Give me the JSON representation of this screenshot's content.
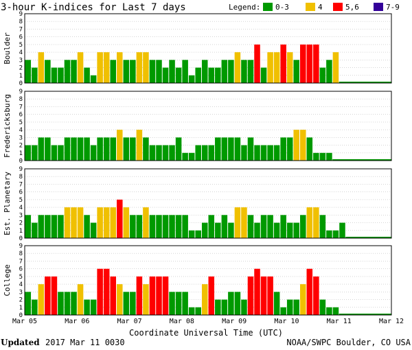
{
  "title": "3-hour K-indices for Last 7 days",
  "legend": {
    "label": "Legend:",
    "items": [
      {
        "label": "0-3",
        "color": "#009900"
      },
      {
        "label": "4",
        "color": "#f0c000"
      },
      {
        "label": "5,6",
        "color": "#ff0000"
      },
      {
        "label": "7-9",
        "color": "#330099"
      }
    ]
  },
  "chart_data": [
    {
      "type": "bar",
      "station": "Boulder",
      "ylim": [
        0,
        9
      ],
      "yticks": [
        "0",
        "1",
        "2",
        "3",
        "4",
        "5",
        "6",
        "7",
        "8",
        "9"
      ],
      "values": [
        3,
        2,
        4,
        3,
        2,
        2,
        3,
        3,
        4,
        2,
        1,
        4,
        4,
        3,
        4,
        3,
        3,
        4,
        4,
        3,
        3,
        2,
        3,
        2,
        3,
        1,
        2,
        3,
        2,
        2,
        3,
        3,
        4,
        3,
        3,
        5,
        2,
        4,
        4,
        5,
        4,
        3,
        5,
        5,
        5,
        2,
        3,
        4
      ]
    },
    {
      "type": "bar",
      "station": "Fredericksburg",
      "ylim": [
        0,
        9
      ],
      "yticks": [
        "0",
        "1",
        "2",
        "3",
        "4",
        "5",
        "6",
        "7",
        "8",
        "9"
      ],
      "values": [
        2,
        2,
        3,
        3,
        2,
        2,
        3,
        3,
        3,
        3,
        2,
        3,
        3,
        3,
        4,
        3,
        3,
        4,
        3,
        2,
        2,
        2,
        2,
        3,
        1,
        1,
        2,
        2,
        2,
        3,
        3,
        3,
        3,
        2,
        3,
        2,
        2,
        2,
        2,
        3,
        3,
        4,
        4,
        3,
        1,
        1,
        1
      ]
    },
    {
      "type": "bar",
      "station": "Est. Planetary",
      "ylim": [
        0,
        9
      ],
      "yticks": [
        "0",
        "1",
        "2",
        "3",
        "4",
        "5",
        "6",
        "7",
        "8",
        "9"
      ],
      "values": [
        3,
        2,
        3,
        3,
        3,
        3,
        4,
        4,
        4,
        3,
        2,
        4,
        4,
        4,
        5,
        4,
        3,
        3,
        4,
        3,
        3,
        3,
        3,
        3,
        3,
        1,
        1,
        2,
        3,
        2,
        3,
        2,
        4,
        4,
        3,
        2,
        3,
        3,
        2,
        3,
        2,
        2,
        3,
        4,
        4,
        3,
        1,
        1,
        2
      ]
    },
    {
      "type": "bar",
      "station": "College",
      "ylim": [
        0,
        9
      ],
      "yticks": [
        "0",
        "1",
        "2",
        "3",
        "4",
        "5",
        "6",
        "7",
        "8",
        "9"
      ],
      "values": [
        3,
        2,
        4,
        5,
        5,
        3,
        3,
        3,
        4,
        2,
        2,
        6,
        6,
        5,
        4,
        3,
        3,
        5,
        4,
        5,
        5,
        5,
        3,
        3,
        3,
        1,
        1,
        4,
        5,
        2,
        2,
        3,
        3,
        2,
        5,
        6,
        5,
        5,
        3,
        1,
        2,
        2,
        4,
        6,
        5,
        2,
        1,
        1
      ]
    }
  ],
  "x_axis": {
    "tick_labels": [
      "Mar 05",
      "Mar 06",
      "Mar 07",
      "Mar 08",
      "Mar 09",
      "Mar 10",
      "Mar 11",
      "Mar 12"
    ],
    "label": "Coordinate Universal Time (UTC)",
    "slots_per_day": 8,
    "days": 7
  },
  "footer": {
    "updated_label": "Updated",
    "updated_value": "2017 Mar 11 0030",
    "source": "NOAA/SWPC Boulder, CO USA"
  }
}
